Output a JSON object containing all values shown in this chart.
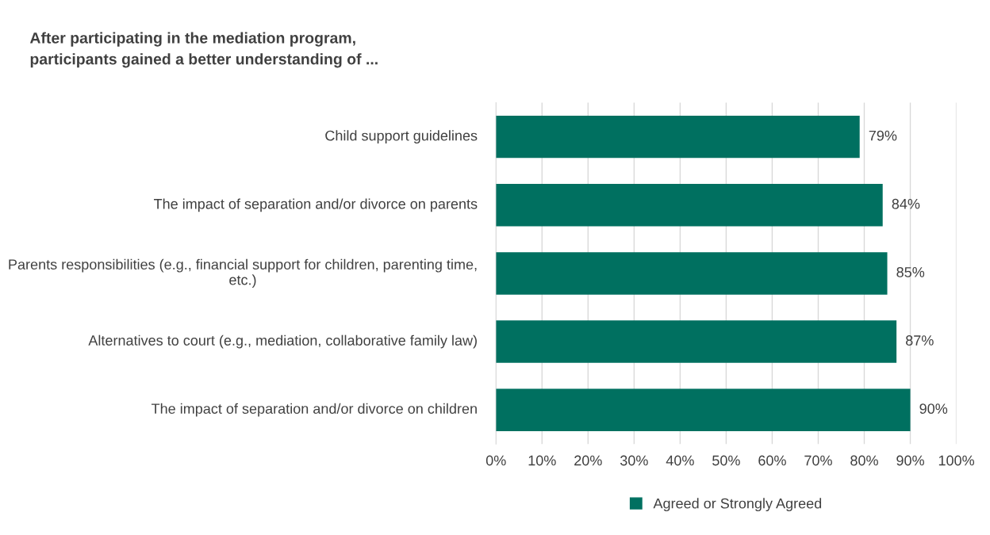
{
  "chart_data": {
    "type": "bar",
    "orientation": "horizontal",
    "title": "After participating in the mediation program,\nparticipants gained a better understanding of ...",
    "categories": [
      "Child support guidelines",
      "The impact of separation and/or divorce on parents",
      "Parents responsibilities (e.g., financial support for children, parenting time, etc.)",
      "Alternatives to court (e.g., mediation, collaborative family law)",
      "The impact of separation and/or divorce on children"
    ],
    "series": [
      {
        "name": "Agreed or Strongly Agreed",
        "color": "#007060",
        "values": [
          79,
          84,
          85,
          87,
          90
        ],
        "value_labels": [
          "79%",
          "84%",
          "85%",
          "87%",
          "90%"
        ]
      }
    ],
    "xlim": [
      0,
      100
    ],
    "xticks": [
      {
        "value": 0,
        "label": "0%"
      },
      {
        "value": 10,
        "label": "10%"
      },
      {
        "value": 20,
        "label": "20%"
      },
      {
        "value": 30,
        "label": "30%"
      },
      {
        "value": 40,
        "label": "40%"
      },
      {
        "value": 50,
        "label": "50%"
      },
      {
        "value": 60,
        "label": "60%"
      },
      {
        "value": 70,
        "label": "70%"
      },
      {
        "value": 80,
        "label": "80%"
      },
      {
        "value": 90,
        "label": "90%"
      },
      {
        "value": 100,
        "label": "100%"
      }
    ],
    "grid": "x",
    "legend": "bottom"
  }
}
